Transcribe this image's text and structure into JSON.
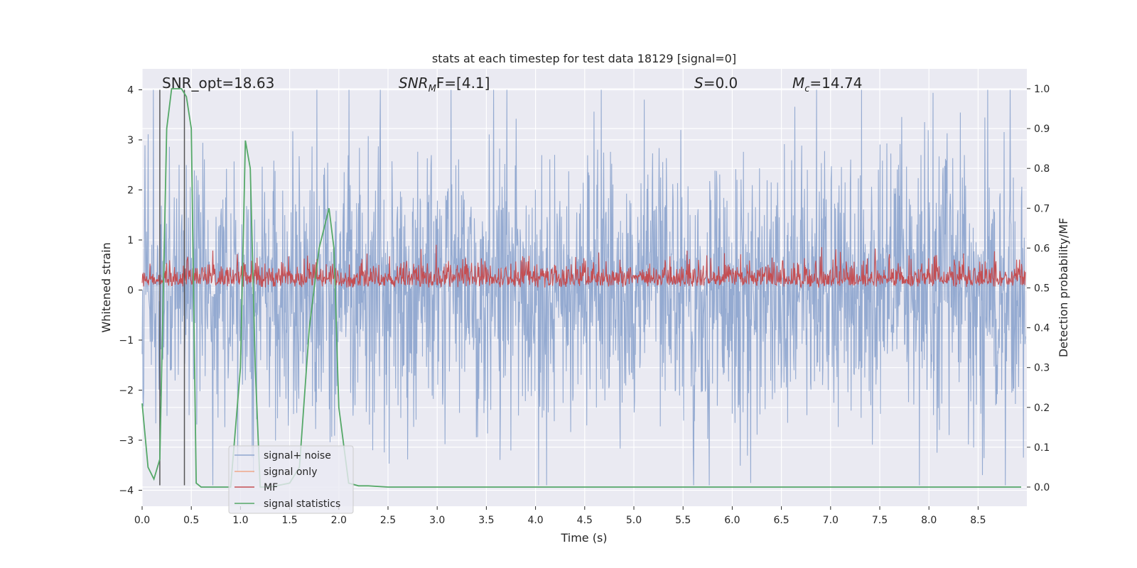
{
  "chart_data": {
    "type": "line",
    "title": "stats at each timestep for test data 18129 [signal=0]",
    "xlabel": "Time (s)",
    "ylabel": "Whitened strain",
    "y2label": "Detection probability/MF",
    "xlim": [
      0.0,
      9.0
    ],
    "ylim": [
      -4.3,
      4.4
    ],
    "y2lim": [
      -0.05,
      1.045
    ],
    "xticks": [
      "0.0",
      "0.5",
      "1.0",
      "1.5",
      "2.0",
      "2.5",
      "3.0",
      "3.5",
      "4.0",
      "4.5",
      "5.0",
      "5.5",
      "6.0",
      "6.5",
      "7.0",
      "7.5",
      "8.0",
      "8.5"
    ],
    "yticks": [
      "4",
      "3",
      "2",
      "1",
      "0",
      "−1",
      "−2",
      "−3",
      "−4"
    ],
    "y2ticks": [
      "1.0",
      "0.9",
      "0.8",
      "0.7",
      "0.6",
      "0.5",
      "0.4",
      "0.3",
      "0.2",
      "0.1",
      "0.0"
    ],
    "annotations": [
      {
        "id": "snr_opt",
        "text": "SNR_opt=18.63"
      },
      {
        "id": "snr_mf",
        "base": "SNR",
        "sub": "M",
        "rest": "F=[4.1]"
      },
      {
        "id": "s",
        "base": "S",
        "rest": "=0.0"
      },
      {
        "id": "mc",
        "base": "M",
        "sub": "c",
        "rest": "=14.74"
      }
    ],
    "vlines_x": [
      0.18,
      0.43
    ],
    "series": [
      {
        "name": "signal+ noise",
        "color": "#8fa6cf",
        "axis": "left",
        "kind": "noise",
        "envelope_min": -3.9,
        "envelope_max": 4.0,
        "typical_amplitude": 1.3
      },
      {
        "name": "signal only",
        "color": "#f0a88a",
        "axis": "left",
        "kind": "flat",
        "value": 0.0
      },
      {
        "name": "MF",
        "color": "#c44e52",
        "axis": "right",
        "kind": "noise",
        "baseline": 0.5,
        "envelope_max": 0.62
      },
      {
        "name": "signal statistics",
        "color": "#55a868",
        "axis": "right",
        "kind": "line",
        "x": [
          0.0,
          0.06,
          0.12,
          0.18,
          0.25,
          0.3,
          0.4,
          0.45,
          0.5,
          0.55,
          0.6,
          0.7,
          0.9,
          1.0,
          1.05,
          1.1,
          1.15,
          1.2,
          1.3,
          1.5,
          1.6,
          1.7,
          1.8,
          1.9,
          1.95,
          2.0,
          2.1,
          2.2,
          2.3,
          2.5,
          3.0,
          9.0
        ],
        "y": [
          0.21,
          0.05,
          0.02,
          0.07,
          0.9,
          1.0,
          1.0,
          0.98,
          0.9,
          0.01,
          0.0,
          0.0,
          0.0,
          0.3,
          0.87,
          0.8,
          0.3,
          0.0,
          0.0,
          0.01,
          0.05,
          0.4,
          0.6,
          0.7,
          0.6,
          0.2,
          0.01,
          0.003,
          0.003,
          0.0,
          0.0,
          0.0
        ]
      }
    ]
  }
}
